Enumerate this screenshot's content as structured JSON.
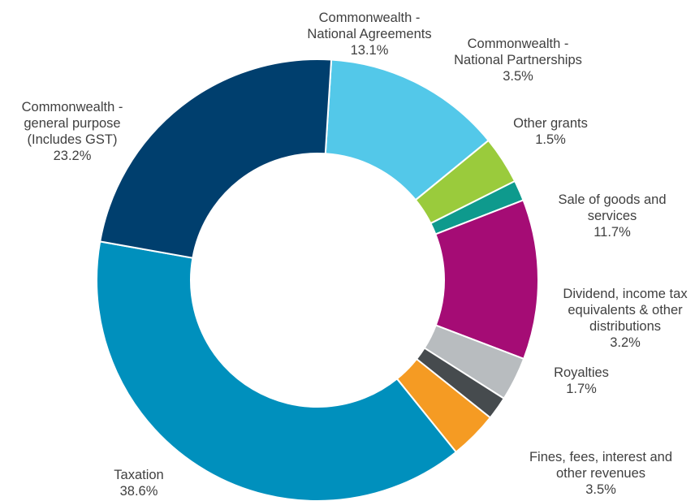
{
  "chart_data": {
    "type": "pie",
    "donut": true,
    "title": "",
    "legend": "none",
    "slices": [
      {
        "label_lines": [
          "Commonwealth -",
          "National Agreements"
        ],
        "value": 13.1,
        "value_label": "13.1%",
        "color": "#53c8e9"
      },
      {
        "label_lines": [
          "Commonwealth -",
          "National Partnerships"
        ],
        "value": 3.5,
        "value_label": "3.5%",
        "color": "#9acb3c"
      },
      {
        "label_lines": [
          "Other grants"
        ],
        "value": 1.5,
        "value_label": "1.5%",
        "color": "#0e9a8d"
      },
      {
        "label_lines": [
          "Sale of goods and",
          "services"
        ],
        "value": 11.7,
        "value_label": "11.7%",
        "color": "#a50c75"
      },
      {
        "label_lines": [
          "Dividend, income tax",
          "equivalents & other",
          "distributions"
        ],
        "value": 3.2,
        "value_label": "3.2%",
        "color": "#b8bcbf"
      },
      {
        "label_lines": [
          "Royalties"
        ],
        "value": 1.7,
        "value_label": "1.7%",
        "color": "#464b4e"
      },
      {
        "label_lines": [
          "Fines, fees, interest and",
          "other revenues"
        ],
        "value": 3.5,
        "value_label": "3.5%",
        "color": "#f59b23"
      },
      {
        "label_lines": [
          "Taxation"
        ],
        "value": 38.6,
        "value_label": "38.6%",
        "color": "#0090bd"
      },
      {
        "label_lines": [
          "Commonwealth -",
          "general purpose",
          "(Includes GST)"
        ],
        "value": 23.2,
        "value_label": "23.2%",
        "color": "#003f6e"
      }
    ]
  }
}
